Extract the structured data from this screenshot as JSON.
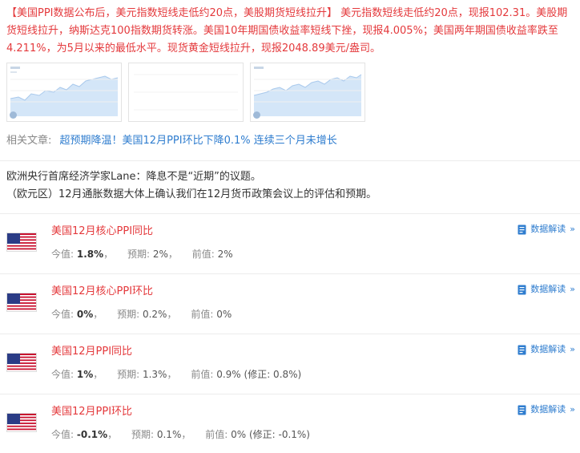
{
  "headline": "【美国PPI数据公布后，美元指数短线走低约20点，美股期货短线拉升】 美元指数短线走低约20点，现报102.31。美股期货短线拉升，纳斯达克100指数期货转涨。美国10年期国债收益率短线下挫，现报4.005%；美国两年期国债收益率跌至4.211%，为5月以来的最低水平。现货黄金短线拉升，现报2048.89美元/盎司。",
  "related": {
    "label": "相关文章:",
    "link": "超预期降温！美国12月PPI环比下降0.1% 连续三个月未增长"
  },
  "quote": {
    "line1": "欧洲央行首席经济学家Lane：降息不是“近期”的议题。",
    "line2": "（欧元区）12月通胀数据大体上确认我们在12月货币政策会议上的评估和预期。"
  },
  "labels": {
    "current": "今值:",
    "forecast": "预期:",
    "previous": "前值:",
    "interpretation": "数据解读",
    "chevron": "»"
  },
  "indicators": [
    {
      "title": "美国12月核心PPI同比",
      "current": "1.8%",
      "sep1": "，",
      "forecast": "2%",
      "sep2": "，",
      "previous": "2%",
      "revised": ""
    },
    {
      "title": "美国12月核心PPI环比",
      "current": "0%",
      "sep1": "，",
      "forecast": "0.2%",
      "sep2": "，",
      "previous": "0%",
      "revised": ""
    },
    {
      "title": "美国12月PPI同比",
      "current": "1%",
      "sep1": "，",
      "forecast": "1.3%",
      "sep2": "，",
      "previous": "0.9%",
      "revised": "(修正: 0.8%)"
    },
    {
      "title": "美国12月PPI环比",
      "current": "-0.1%",
      "sep1": "，",
      "forecast": "0.1%",
      "sep2": "，",
      "previous": "0%",
      "revised": "(修正: -0.1%)"
    }
  ],
  "colors": {
    "headline_red": "#e4393c",
    "link_blue": "#2f7dcf",
    "muted_gray": "#888888"
  },
  "icons": [
    "us-flag-icon",
    "document-icon",
    "double-chevron-right-icon"
  ]
}
